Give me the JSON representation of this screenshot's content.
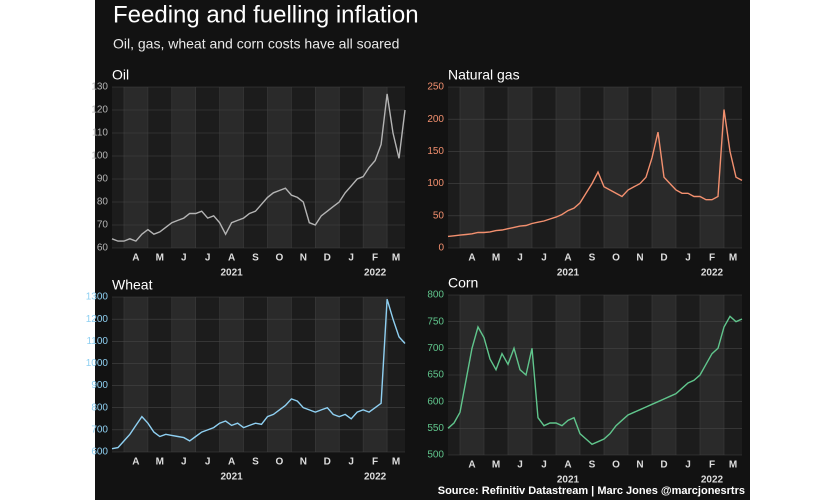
{
  "title": "Feeding and fuelling inflation",
  "subtitle": "Oil, gas, wheat and corn costs have all soared",
  "source": "Source: Refinitiv Datastream | Marc Jones @marcjonesrtrs",
  "chart_data": [
    {
      "type": "line",
      "title": "Oil",
      "color": "#b4b4b4",
      "categories": [
        null,
        null,
        "A",
        null,
        null,
        null,
        "M",
        null,
        null,
        null,
        "J",
        null,
        null,
        null,
        "J",
        null,
        null,
        null,
        "A",
        null,
        null,
        null,
        "S",
        null,
        null,
        null,
        "O",
        null,
        null,
        null,
        "N",
        null,
        null,
        null,
        "D",
        null,
        null,
        null,
        "J",
        null,
        null,
        null,
        "F",
        null,
        null,
        null,
        "M",
        null,
        null,
        null
      ],
      "years": [
        "2021",
        "2022"
      ],
      "values": [
        64,
        63,
        63,
        64,
        63,
        66,
        68,
        66,
        67,
        69,
        71,
        72,
        73,
        75,
        75,
        76,
        73,
        74,
        71,
        66,
        71,
        72,
        73,
        75,
        76,
        79,
        82,
        84,
        85,
        86,
        83,
        82,
        80,
        71,
        70,
        74,
        76,
        78,
        80,
        84,
        87,
        90,
        91,
        95,
        98,
        105,
        127,
        110,
        99,
        120
      ],
      "ylim": [
        60,
        130
      ],
      "yticks": [
        60,
        70,
        80,
        90,
        100,
        110,
        120,
        130
      ],
      "grid": true
    },
    {
      "type": "line",
      "title": "Natural gas",
      "color": "#f3906f",
      "categories": [
        null,
        null,
        "A",
        null,
        null,
        null,
        "M",
        null,
        null,
        null,
        "J",
        null,
        null,
        null,
        "J",
        null,
        null,
        null,
        "A",
        null,
        null,
        null,
        "S",
        null,
        null,
        null,
        "O",
        null,
        null,
        null,
        "N",
        null,
        null,
        null,
        "D",
        null,
        null,
        null,
        "J",
        null,
        null,
        null,
        "F",
        null,
        null,
        null,
        "M",
        null,
        null,
        null
      ],
      "years": [
        "2021",
        "2022"
      ],
      "values": [
        18,
        19,
        20,
        21,
        22,
        24,
        24,
        25,
        27,
        28,
        30,
        32,
        34,
        35,
        38,
        40,
        42,
        45,
        48,
        52,
        58,
        62,
        70,
        85,
        100,
        118,
        95,
        90,
        85,
        80,
        90,
        95,
        100,
        110,
        140,
        180,
        110,
        100,
        90,
        85,
        85,
        80,
        80,
        75,
        75,
        80,
        215,
        150,
        110,
        105
      ],
      "ylim": [
        0,
        250
      ],
      "yticks": [
        0,
        50,
        100,
        150,
        200,
        250
      ],
      "grid": true
    },
    {
      "type": "line",
      "title": "Wheat",
      "color": "#8fd0f2",
      "categories": [
        null,
        null,
        "A",
        null,
        null,
        null,
        "M",
        null,
        null,
        null,
        "J",
        null,
        null,
        null,
        "J",
        null,
        null,
        null,
        "A",
        null,
        null,
        null,
        "S",
        null,
        null,
        null,
        "O",
        null,
        null,
        null,
        "N",
        null,
        null,
        null,
        "D",
        null,
        null,
        null,
        "J",
        null,
        null,
        null,
        "F",
        null,
        null,
        null,
        "M",
        null,
        null,
        null
      ],
      "years": [
        "2021",
        "2022"
      ],
      "values": [
        615,
        620,
        650,
        680,
        720,
        760,
        730,
        690,
        670,
        680,
        675,
        670,
        665,
        650,
        670,
        690,
        700,
        710,
        730,
        740,
        720,
        730,
        710,
        720,
        730,
        725,
        760,
        770,
        790,
        810,
        840,
        830,
        800,
        790,
        780,
        790,
        800,
        770,
        760,
        770,
        750,
        780,
        790,
        780,
        800,
        820,
        1290,
        1200,
        1120,
        1090
      ],
      "ylim": [
        600,
        1300
      ],
      "yticks": [
        600,
        700,
        800,
        900,
        1000,
        1100,
        1200,
        1300
      ],
      "grid": true
    },
    {
      "type": "line",
      "title": "Corn",
      "color": "#60c58c",
      "categories": [
        null,
        null,
        "A",
        null,
        null,
        null,
        "M",
        null,
        null,
        null,
        "J",
        null,
        null,
        null,
        "J",
        null,
        null,
        null,
        "A",
        null,
        null,
        null,
        "S",
        null,
        null,
        null,
        "O",
        null,
        null,
        null,
        "N",
        null,
        null,
        null,
        "D",
        null,
        null,
        null,
        "J",
        null,
        null,
        null,
        "F",
        null,
        null,
        null,
        "M",
        null,
        null,
        null
      ],
      "years": [
        "2021",
        "2022"
      ],
      "values": [
        550,
        560,
        580,
        640,
        700,
        740,
        720,
        680,
        660,
        690,
        670,
        700,
        660,
        650,
        700,
        570,
        555,
        560,
        560,
        555,
        565,
        570,
        540,
        530,
        520,
        525,
        530,
        540,
        555,
        565,
        575,
        580,
        585,
        590,
        595,
        600,
        605,
        610,
        615,
        625,
        635,
        640,
        650,
        670,
        690,
        700,
        740,
        760,
        750,
        755
      ],
      "ylim": [
        500,
        800
      ],
      "yticks": [
        500,
        550,
        600,
        650,
        700,
        750,
        800
      ],
      "grid": true
    }
  ]
}
